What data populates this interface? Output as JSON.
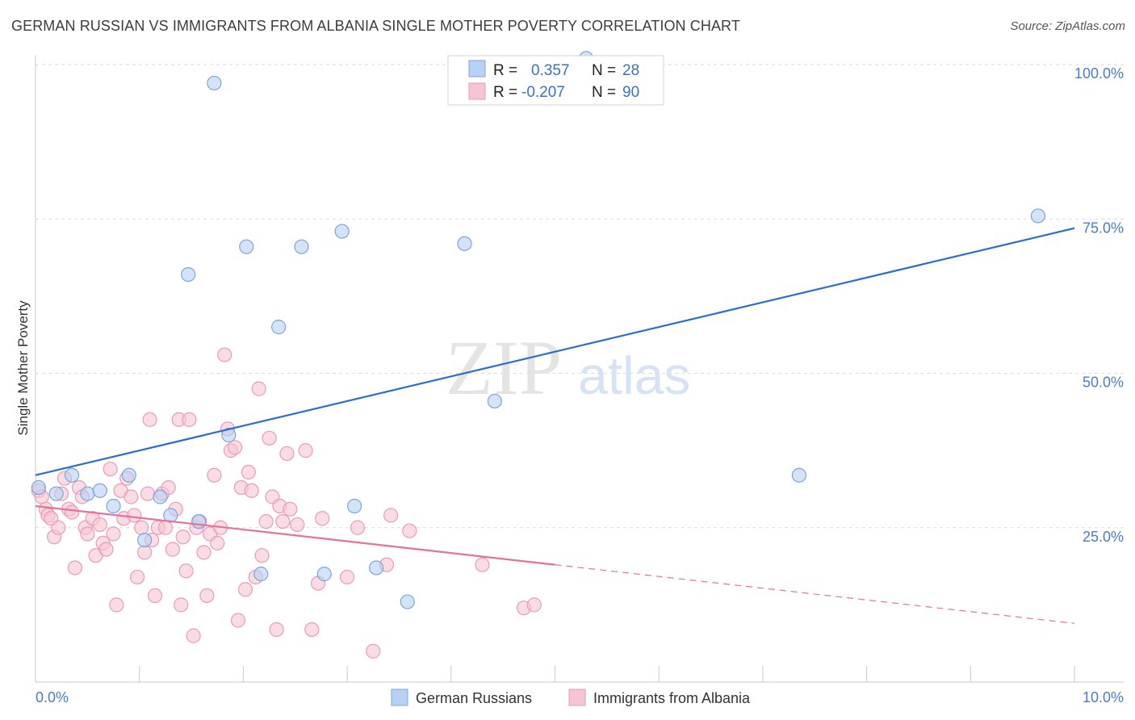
{
  "header": {
    "title": "GERMAN RUSSIAN VS IMMIGRANTS FROM ALBANIA SINGLE MOTHER POVERTY CORRELATION CHART",
    "source": "Source: ZipAtlas.com"
  },
  "watermark": {
    "zip": "ZIP",
    "atlas": "atlas"
  },
  "colors": {
    "blue_fill": "#b8d1f3",
    "blue_stroke": "#7aa6e0",
    "blue_line": "#2a6fd0",
    "pink_fill": "#f7c4d4",
    "pink_stroke": "#ec9ab5",
    "pink_line": "#e8719a",
    "tick_label": "#4a7cc9",
    "grid": "#dcdcdc"
  },
  "legend": {
    "rows": [
      {
        "r_label": "R =",
        "r_value": "0.357",
        "n_label": "N =",
        "n_value": "28"
      },
      {
        "r_label": "R =",
        "r_value": "-0.207",
        "n_label": "N =",
        "n_value": "90"
      }
    ]
  },
  "chart_data": {
    "type": "scatter",
    "title": "GERMAN RUSSIAN VS IMMIGRANTS FROM ALBANIA SINGLE MOTHER POVERTY CORRELATION CHART",
    "xlabel": "",
    "ylabel": "Single Mother Poverty",
    "xlim": [
      0,
      10
    ],
    "ylim": [
      0,
      100
    ],
    "x_tick_labels": [
      "0.0%",
      "10.0%"
    ],
    "y_tick_labels": [
      "100.0%",
      "75.0%",
      "50.0%",
      "25.0%"
    ],
    "y_ticks": [
      100,
      75,
      50,
      25
    ],
    "grid": true,
    "series": [
      {
        "name": "German Russians",
        "r": 0.357,
        "n": 28,
        "trend": {
          "x": [
            0,
            10
          ],
          "y": [
            33.5,
            73.5
          ],
          "dashed_from": null
        },
        "points": [
          [
            0.03,
            31.5
          ],
          [
            0.2,
            30.5
          ],
          [
            0.35,
            33.5
          ],
          [
            0.5,
            30.5
          ],
          [
            0.62,
            31
          ],
          [
            0.75,
            28.5
          ],
          [
            0.9,
            33.5
          ],
          [
            1.05,
            23
          ],
          [
            1.2,
            30
          ],
          [
            1.3,
            27
          ],
          [
            1.47,
            66
          ],
          [
            1.57,
            26
          ],
          [
            1.72,
            97
          ],
          [
            1.86,
            40
          ],
          [
            2.03,
            70.5
          ],
          [
            2.17,
            17.5
          ],
          [
            2.34,
            57.5
          ],
          [
            2.56,
            70.5
          ],
          [
            2.78,
            17.5
          ],
          [
            2.95,
            73
          ],
          [
            3.07,
            28.5
          ],
          [
            3.28,
            18.5
          ],
          [
            3.58,
            13
          ],
          [
            4.13,
            71
          ],
          [
            4.42,
            45.5
          ],
          [
            5.3,
            101
          ],
          [
            7.35,
            33.5
          ],
          [
            9.65,
            75.5
          ]
        ]
      },
      {
        "name": "Immigrants from Albania",
        "r": -0.207,
        "n": 90,
        "trend": {
          "x": [
            0,
            10
          ],
          "y": [
            28.5,
            9.5
          ],
          "dashed_from": 5
        },
        "points": [
          [
            0.03,
            31
          ],
          [
            0.06,
            30
          ],
          [
            0.1,
            28
          ],
          [
            0.12,
            27
          ],
          [
            0.15,
            26.5
          ],
          [
            0.18,
            23.5
          ],
          [
            0.22,
            25
          ],
          [
            0.25,
            30.5
          ],
          [
            0.28,
            33
          ],
          [
            0.32,
            28
          ],
          [
            0.35,
            27.5
          ],
          [
            0.38,
            18.5
          ],
          [
            0.42,
            31.5
          ],
          [
            0.45,
            30
          ],
          [
            0.48,
            25
          ],
          [
            0.5,
            24
          ],
          [
            0.55,
            26.5
          ],
          [
            0.58,
            20.5
          ],
          [
            0.62,
            25.5
          ],
          [
            0.65,
            22.5
          ],
          [
            0.68,
            21.5
          ],
          [
            0.72,
            34.5
          ],
          [
            0.75,
            24
          ],
          [
            0.78,
            12.5
          ],
          [
            0.82,
            31
          ],
          [
            0.85,
            26.5
          ],
          [
            0.88,
            33
          ],
          [
            0.92,
            30
          ],
          [
            0.95,
            27
          ],
          [
            0.98,
            17
          ],
          [
            1.02,
            25
          ],
          [
            1.05,
            21
          ],
          [
            1.08,
            30.5
          ],
          [
            1.1,
            42.5
          ],
          [
            1.12,
            23
          ],
          [
            1.15,
            14
          ],
          [
            1.18,
            25
          ],
          [
            1.22,
            30.5
          ],
          [
            1.25,
            25
          ],
          [
            1.28,
            31.5
          ],
          [
            1.32,
            21.5
          ],
          [
            1.35,
            28
          ],
          [
            1.38,
            42.5
          ],
          [
            1.4,
            12.5
          ],
          [
            1.42,
            23.5
          ],
          [
            1.45,
            18
          ],
          [
            1.48,
            42.5
          ],
          [
            1.52,
            7.5
          ],
          [
            1.55,
            25
          ],
          [
            1.58,
            26
          ],
          [
            1.62,
            21
          ],
          [
            1.65,
            14
          ],
          [
            1.68,
            24
          ],
          [
            1.72,
            33.5
          ],
          [
            1.75,
            22.5
          ],
          [
            1.78,
            25
          ],
          [
            1.82,
            53
          ],
          [
            1.85,
            41
          ],
          [
            1.88,
            37.5
          ],
          [
            1.92,
            38
          ],
          [
            1.95,
            10
          ],
          [
            1.98,
            31.5
          ],
          [
            2.02,
            15
          ],
          [
            2.05,
            34
          ],
          [
            2.08,
            31
          ],
          [
            2.12,
            17
          ],
          [
            2.15,
            47.5
          ],
          [
            2.18,
            20.5
          ],
          [
            2.22,
            26
          ],
          [
            2.25,
            39.5
          ],
          [
            2.28,
            30
          ],
          [
            2.32,
            8.5
          ],
          [
            2.35,
            28.5
          ],
          [
            2.38,
            26
          ],
          [
            2.42,
            37
          ],
          [
            2.45,
            28
          ],
          [
            2.52,
            25.5
          ],
          [
            2.6,
            37.5
          ],
          [
            2.66,
            8.5
          ],
          [
            2.72,
            16
          ],
          [
            2.76,
            26.5
          ],
          [
            3.0,
            17
          ],
          [
            3.1,
            25
          ],
          [
            3.25,
            5
          ],
          [
            3.38,
            19
          ],
          [
            3.42,
            27
          ],
          [
            3.6,
            24.5
          ],
          [
            4.3,
            19
          ],
          [
            4.7,
            12
          ],
          [
            4.8,
            12.5
          ]
        ]
      }
    ]
  }
}
